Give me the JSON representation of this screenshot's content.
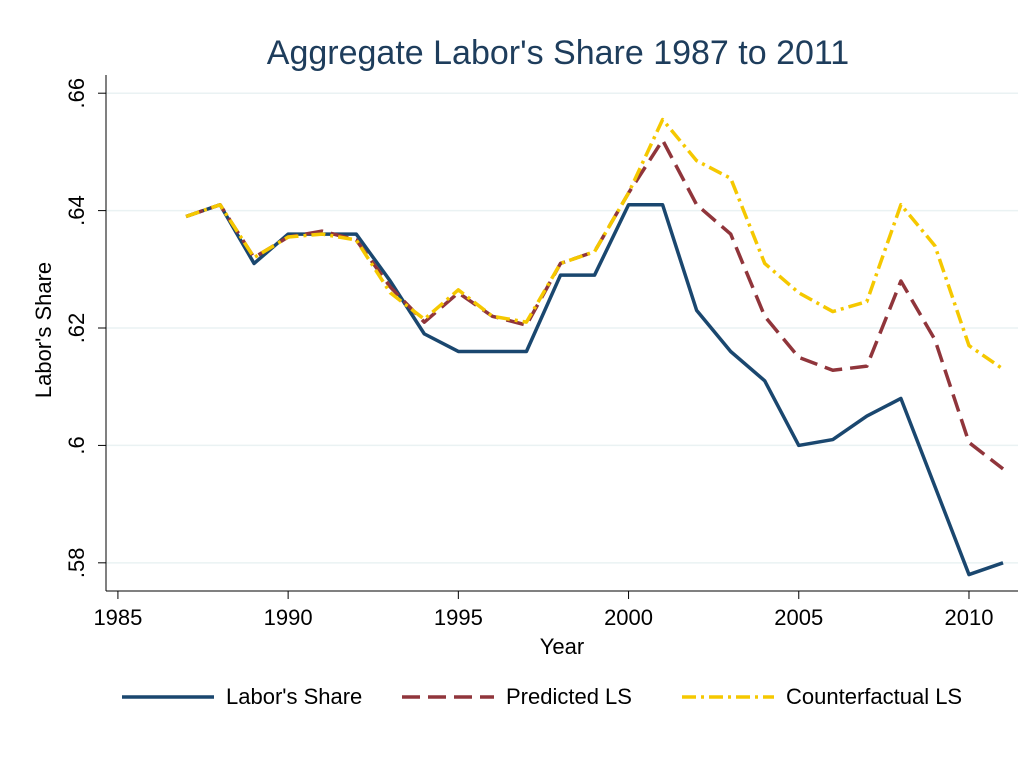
{
  "chart_data": {
    "type": "line",
    "title": "Aggregate Labor's Share 1987 to 2011",
    "xlabel": "Year",
    "ylabel": "Labor's Share",
    "x": [
      1987,
      1988,
      1989,
      1990,
      1991,
      1992,
      1993,
      1994,
      1995,
      1996,
      1997,
      1998,
      1999,
      2000,
      2001,
      2002,
      2003,
      2004,
      2005,
      2006,
      2007,
      2008,
      2009,
      2010,
      2011
    ],
    "series": [
      {
        "name": "Labor's Share",
        "color": "#1a476f",
        "dash": "solid",
        "values": [
          0.639,
          0.641,
          0.631,
          0.636,
          0.636,
          0.636,
          0.628,
          0.619,
          0.616,
          0.616,
          0.616,
          0.629,
          0.629,
          0.641,
          0.641,
          0.623,
          0.616,
          0.611,
          0.6,
          0.601,
          0.605,
          0.608,
          0.593,
          0.578,
          0.58
        ]
      },
      {
        "name": "Predicted LS",
        "color": "#90353b",
        "dash": "dash",
        "values": [
          0.639,
          0.641,
          0.632,
          0.6355,
          0.6365,
          0.635,
          0.627,
          0.621,
          0.626,
          0.622,
          0.6205,
          0.631,
          0.633,
          0.643,
          0.652,
          0.641,
          0.636,
          0.622,
          0.615,
          0.6128,
          0.6135,
          0.628,
          0.618,
          0.6005,
          0.596
        ]
      },
      {
        "name": "Counterfactual LS",
        "color": "#f5c800",
        "dash": "dashdot",
        "values": [
          0.639,
          0.641,
          0.632,
          0.6355,
          0.636,
          0.635,
          0.626,
          0.6215,
          0.6265,
          0.622,
          0.621,
          0.631,
          0.633,
          0.643,
          0.6555,
          0.6485,
          0.6455,
          0.631,
          0.626,
          0.6228,
          0.6245,
          0.641,
          0.634,
          0.617,
          0.613
        ]
      }
    ],
    "xlim": [
      1984.65,
      2011.44
    ],
    "xticks": [
      1985,
      1990,
      1995,
      2000,
      2005,
      2010
    ],
    "ylim": [
      0.5752,
      0.6631
    ],
    "yticks": [
      {
        "value": 0.58,
        "label": ".58"
      },
      {
        "value": 0.6,
        "label": ".6"
      },
      {
        "value": 0.62,
        "label": ".62"
      },
      {
        "value": 0.64,
        "label": ".64"
      },
      {
        "value": 0.66,
        "label": ".66"
      }
    ],
    "grid": true,
    "legend": "bottom"
  }
}
